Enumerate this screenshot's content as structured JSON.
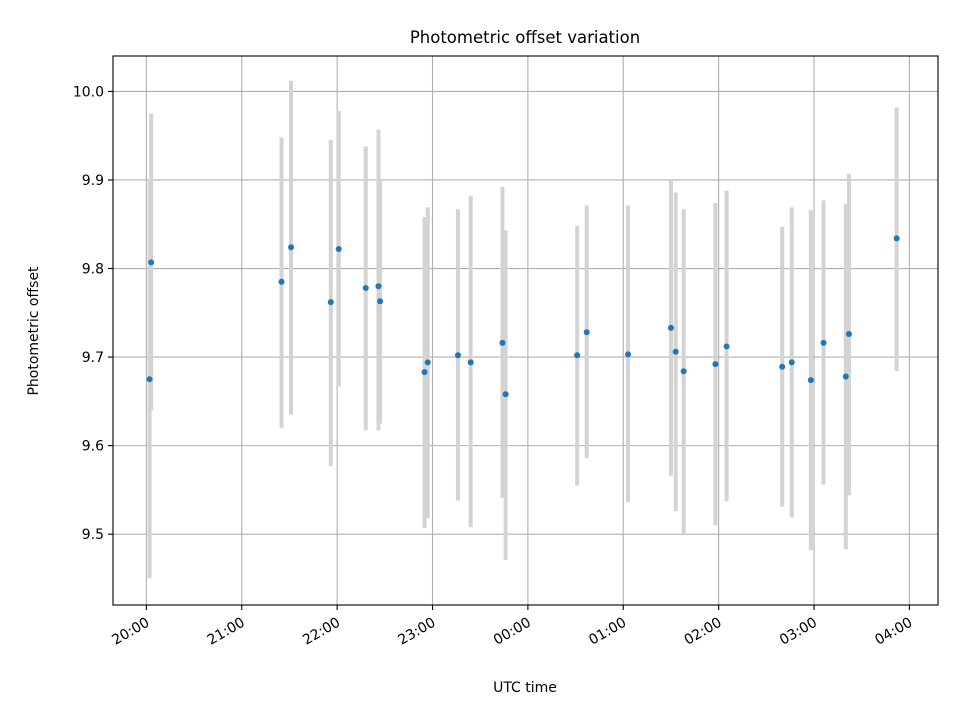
{
  "chart_data": {
    "type": "scatter",
    "title": "Photometric offset variation",
    "xlabel": "UTC time",
    "ylabel": "Photometric offset",
    "x_unit": "UTC time (hours since 20:00)",
    "xlim": [
      -0.35,
      8.3
    ],
    "ylim": [
      9.42,
      10.04
    ],
    "grid": true,
    "x_ticks": [
      {
        "value": 0,
        "label": "20:00"
      },
      {
        "value": 1,
        "label": "21:00"
      },
      {
        "value": 2,
        "label": "22:00"
      },
      {
        "value": 3,
        "label": "23:00"
      },
      {
        "value": 4,
        "label": "00:00"
      },
      {
        "value": 5,
        "label": "01:00"
      },
      {
        "value": 6,
        "label": "02:00"
      },
      {
        "value": 7,
        "label": "03:00"
      },
      {
        "value": 8,
        "label": "04:00"
      }
    ],
    "y_ticks": [
      {
        "value": 9.5,
        "label": "9.5"
      },
      {
        "value": 9.6,
        "label": "9.6"
      },
      {
        "value": 9.7,
        "label": "9.7"
      },
      {
        "value": 9.8,
        "label": "9.8"
      },
      {
        "value": 9.9,
        "label": "9.9"
      },
      {
        "value": 10.0,
        "label": "10.0"
      }
    ],
    "colors": {
      "point": "#1f77b4",
      "errorbar": "#d3d3d3",
      "grid": "#b0b0b0"
    },
    "points": [
      {
        "t": "20:02",
        "y": 9.675,
        "ylo": 9.45,
        "yhi": 9.9
      },
      {
        "t": "20:03",
        "y": 9.807,
        "ylo": 9.64,
        "yhi": 9.975
      },
      {
        "t": "21:25",
        "y": 9.785,
        "ylo": 9.62,
        "yhi": 9.948
      },
      {
        "t": "21:31",
        "y": 9.824,
        "ylo": 9.635,
        "yhi": 10.012
      },
      {
        "t": "21:56",
        "y": 9.762,
        "ylo": 9.577,
        "yhi": 9.945
      },
      {
        "t": "22:01",
        "y": 9.822,
        "ylo": 9.667,
        "yhi": 9.978
      },
      {
        "t": "22:18",
        "y": 9.778,
        "ylo": 9.617,
        "yhi": 9.938
      },
      {
        "t": "22:26",
        "y": 9.78,
        "ylo": 9.617,
        "yhi": 9.957
      },
      {
        "t": "22:27",
        "y": 9.763,
        "ylo": 9.625,
        "yhi": 9.9
      },
      {
        "t": "22:55",
        "y": 9.683,
        "ylo": 9.507,
        "yhi": 9.858
      },
      {
        "t": "22:57",
        "y": 9.694,
        "ylo": 9.518,
        "yhi": 9.869
      },
      {
        "t": "23:16",
        "y": 9.702,
        "ylo": 9.538,
        "yhi": 9.867
      },
      {
        "t": "23:24",
        "y": 9.694,
        "ylo": 9.508,
        "yhi": 9.882
      },
      {
        "t": "23:44",
        "y": 9.716,
        "ylo": 9.541,
        "yhi": 9.892
      },
      {
        "t": "23:46",
        "y": 9.658,
        "ylo": 9.471,
        "yhi": 9.843
      },
      {
        "t": "00:31",
        "y": 9.702,
        "ylo": 9.555,
        "yhi": 9.848
      },
      {
        "t": "00:37",
        "y": 9.728,
        "ylo": 9.586,
        "yhi": 9.871
      },
      {
        "t": "01:03",
        "y": 9.703,
        "ylo": 9.536,
        "yhi": 9.871
      },
      {
        "t": "01:30",
        "y": 9.733,
        "ylo": 9.566,
        "yhi": 9.9
      },
      {
        "t": "01:33",
        "y": 9.706,
        "ylo": 9.526,
        "yhi": 9.886
      },
      {
        "t": "01:38",
        "y": 9.684,
        "ylo": 9.5,
        "yhi": 9.867
      },
      {
        "t": "01:58",
        "y": 9.692,
        "ylo": 9.51,
        "yhi": 9.874
      },
      {
        "t": "02:05",
        "y": 9.712,
        "ylo": 9.537,
        "yhi": 9.888
      },
      {
        "t": "02:40",
        "y": 9.689,
        "ylo": 9.531,
        "yhi": 9.847
      },
      {
        "t": "02:46",
        "y": 9.694,
        "ylo": 9.519,
        "yhi": 9.869
      },
      {
        "t": "02:58",
        "y": 9.674,
        "ylo": 9.482,
        "yhi": 9.866
      },
      {
        "t": "03:06",
        "y": 9.716,
        "ylo": 9.556,
        "yhi": 9.877
      },
      {
        "t": "03:20",
        "y": 9.678,
        "ylo": 9.483,
        "yhi": 9.873
      },
      {
        "t": "03:22",
        "y": 9.726,
        "ylo": 9.544,
        "yhi": 9.907
      },
      {
        "t": "03:52",
        "y": 9.834,
        "ylo": 9.684,
        "yhi": 9.982
      }
    ]
  }
}
